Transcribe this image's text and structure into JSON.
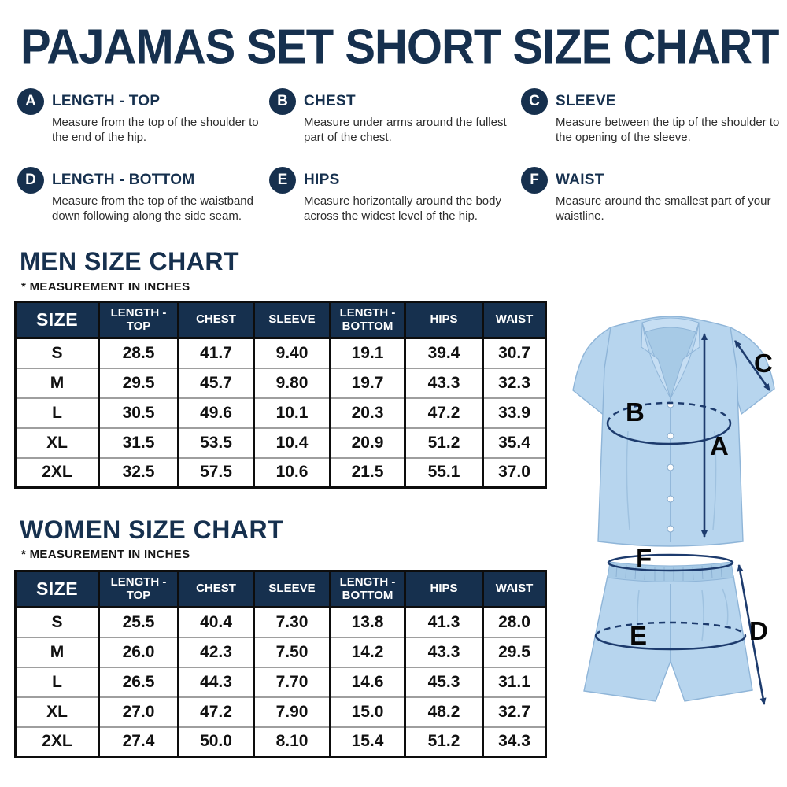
{
  "title": "PAJAMAS SET SHORT SIZE CHART",
  "colors": {
    "navy": "#16304e",
    "arrow": "#1d3b6d",
    "pj": "#b7d5ee"
  },
  "measurements": [
    {
      "letter": "A",
      "name": "LENGTH - TOP",
      "desc": "Measure from the top of the shoulder to the end of the hip."
    },
    {
      "letter": "B",
      "name": "CHEST",
      "desc": "Measure under arms around the fullest part of the chest."
    },
    {
      "letter": "C",
      "name": "SLEEVE",
      "desc": "Measure between the tip of the shoulder to the opening of the sleeve."
    },
    {
      "letter": "D",
      "name": "LENGTH - BOTTOM",
      "desc": "Measure from the top of the waistband down following along the side seam."
    },
    {
      "letter": "E",
      "name": "HIPS",
      "desc": "Measure horizontally around the body across the widest level of the hip."
    },
    {
      "letter": "F",
      "name": "WAIST",
      "desc": "Measure around the smallest part of your waistline."
    }
  ],
  "tables": {
    "columns": [
      "SIZE",
      "LENGTH - TOP",
      "CHEST",
      "SLEEVE",
      "LENGTH - BOTTOM",
      "HIPS",
      "WAIST"
    ],
    "men": {
      "heading": "MEN SIZE CHART",
      "note": "* MEASUREMENT IN INCHES",
      "rows": [
        [
          "S",
          "28.5",
          "41.7",
          "9.40",
          "19.1",
          "39.4",
          "30.7"
        ],
        [
          "M",
          "29.5",
          "45.7",
          "9.80",
          "19.7",
          "43.3",
          "32.3"
        ],
        [
          "L",
          "30.5",
          "49.6",
          "10.1",
          "20.3",
          "47.2",
          "33.9"
        ],
        [
          "XL",
          "31.5",
          "53.5",
          "10.4",
          "20.9",
          "51.2",
          "35.4"
        ],
        [
          "2XL",
          "32.5",
          "57.5",
          "10.6",
          "21.5",
          "55.1",
          "37.0"
        ]
      ]
    },
    "women": {
      "heading": "WOMEN SIZE CHART",
      "note": "* MEASUREMENT IN INCHES",
      "rows": [
        [
          "S",
          "25.5",
          "40.4",
          "7.30",
          "13.8",
          "41.3",
          "28.0"
        ],
        [
          "M",
          "26.0",
          "42.3",
          "7.50",
          "14.2",
          "43.3",
          "29.5"
        ],
        [
          "L",
          "26.5",
          "44.3",
          "7.70",
          "14.6",
          "45.3",
          "31.1"
        ],
        [
          "XL",
          "27.0",
          "47.2",
          "7.90",
          "15.0",
          "48.2",
          "32.7"
        ],
        [
          "2XL",
          "27.4",
          "50.0",
          "8.10",
          "15.4",
          "51.2",
          "34.3"
        ]
      ]
    }
  },
  "illustration": {
    "labels": {
      "a": "A",
      "b": "B",
      "c": "C",
      "d": "D",
      "e": "E",
      "f": "F"
    }
  }
}
